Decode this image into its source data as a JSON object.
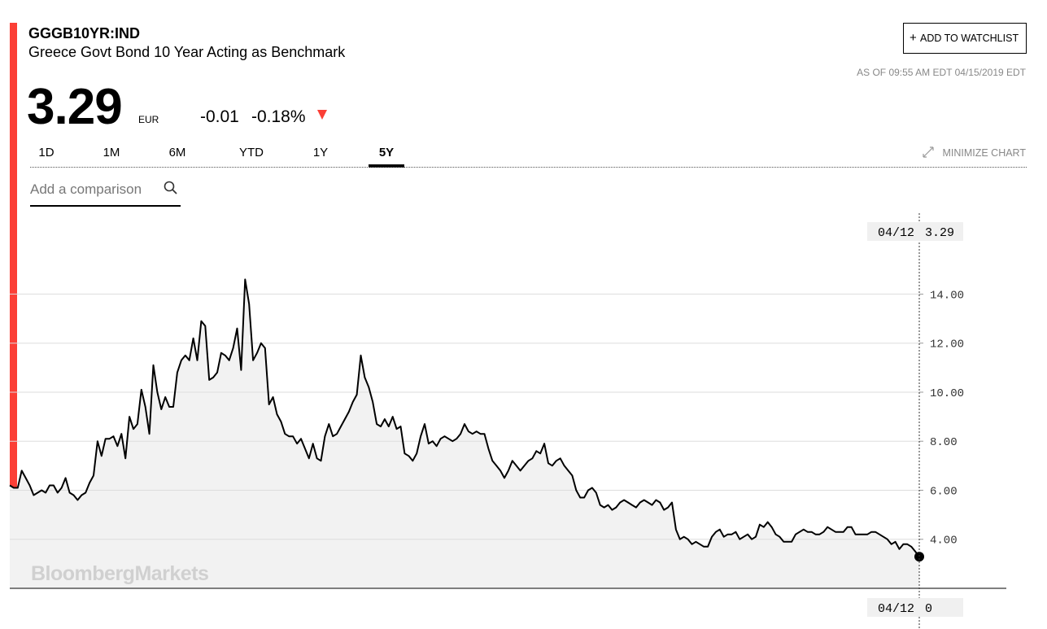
{
  "header": {
    "ticker": "GGGB10YR:IND",
    "name": "Greece Govt Bond 10 Year Acting as Benchmark",
    "price": "3.29",
    "currency": "EUR",
    "change": "-0.01",
    "change_pct": "-0.18%"
  },
  "watchlist_button": "ADD TO WATCHLIST",
  "as_of": "AS OF 09:55 AM EDT 04/15/2019 EDT",
  "tabs": [
    "1D",
    "1M",
    "6M",
    "YTD",
    "1Y",
    "5Y"
  ],
  "active_tab": 5,
  "minimize_chart": "MINIMIZE CHART",
  "comparison_placeholder": "Add a comparison",
  "watermark": "BloombergMarkets",
  "chart_data": {
    "type": "line",
    "series": [
      {
        "color": "#000000",
        "fill": "#f2f2f2",
        "values": [
          6.2,
          6.1,
          6.1,
          6.8,
          6.5,
          6.2,
          5.8,
          5.9,
          6.0,
          5.9,
          6.2,
          6.2,
          5.9,
          6.1,
          6.5,
          5.9,
          5.8,
          5.6,
          5.8,
          5.9,
          6.3,
          6.6,
          8.0,
          7.4,
          8.1,
          8.1,
          8.2,
          7.8,
          8.3,
          7.3,
          9.0,
          8.5,
          8.7,
          10.1,
          9.4,
          8.3,
          11.1,
          10.0,
          9.3,
          9.8,
          9.4,
          9.4,
          10.8,
          11.3,
          11.5,
          11.3,
          12.2,
          11.3,
          12.9,
          12.7,
          10.5,
          10.6,
          10.8,
          11.6,
          11.5,
          11.3,
          11.8,
          12.6,
          10.9,
          14.6,
          13.6,
          11.3,
          11.6,
          12.0,
          11.8,
          9.5,
          9.8,
          9.1,
          8.8,
          8.3,
          8.2,
          8.2,
          7.9,
          8.1,
          7.7,
          7.3,
          7.9,
          7.3,
          7.2,
          8.2,
          8.7,
          8.2,
          8.3,
          8.6,
          8.9,
          9.2,
          9.6,
          9.9,
          11.5,
          10.6,
          10.2,
          9.6,
          8.7,
          8.6,
          8.9,
          8.6,
          9.0,
          8.5,
          8.6,
          7.5,
          7.4,
          7.2,
          7.5,
          8.2,
          8.7,
          7.9,
          8.0,
          7.8,
          8.1,
          8.2,
          8.1,
          8.0,
          8.1,
          8.3,
          8.7,
          8.4,
          8.3,
          8.4,
          8.3,
          8.3,
          7.7,
          7.2,
          7.0,
          6.8,
          6.5,
          6.8,
          7.2,
          7.0,
          6.8,
          7.0,
          7.2,
          7.3,
          7.6,
          7.5,
          7.9,
          7.1,
          7.0,
          7.2,
          7.3,
          7.0,
          6.8,
          6.6,
          6.0,
          5.7,
          5.7,
          6.0,
          6.1,
          5.9,
          5.4,
          5.3,
          5.4,
          5.2,
          5.3,
          5.5,
          5.6,
          5.5,
          5.4,
          5.3,
          5.5,
          5.6,
          5.5,
          5.4,
          5.6,
          5.5,
          5.2,
          5.3,
          5.5,
          4.4,
          4.0,
          4.1,
          4.0,
          3.8,
          3.9,
          3.8,
          3.7,
          3.7,
          4.1,
          4.3,
          4.4,
          4.1,
          4.2,
          4.2,
          4.3,
          4.0,
          4.1,
          4.2,
          4.0,
          4.1,
          4.6,
          4.5,
          4.7,
          4.5,
          4.2,
          4.1,
          3.9,
          3.9,
          3.9,
          4.2,
          4.3,
          4.4,
          4.3,
          4.3,
          4.2,
          4.2,
          4.3,
          4.5,
          4.4,
          4.3,
          4.3,
          4.3,
          4.5,
          4.5,
          4.2,
          4.2,
          4.2,
          4.2,
          4.3,
          4.3,
          4.2,
          4.1,
          4.0,
          3.8,
          3.9,
          3.6,
          3.8,
          3.8,
          3.7,
          3.5,
          3.29
        ]
      }
    ],
    "ylim": [
      2,
      17.3
    ],
    "yticks": [
      {
        "value": 4,
        "label": "4.00"
      },
      {
        "value": 6,
        "label": "6.00"
      },
      {
        "value": 8,
        "label": "8.00"
      },
      {
        "value": 10,
        "label": "10.00"
      },
      {
        "value": 12,
        "label": "12.00"
      },
      {
        "value": 14,
        "label": "14.00"
      }
    ],
    "grid": true,
    "crosshair": {
      "label": "04/12",
      "value": "3.29"
    },
    "volume_readout": {
      "label": "04/12",
      "value": "0"
    }
  }
}
